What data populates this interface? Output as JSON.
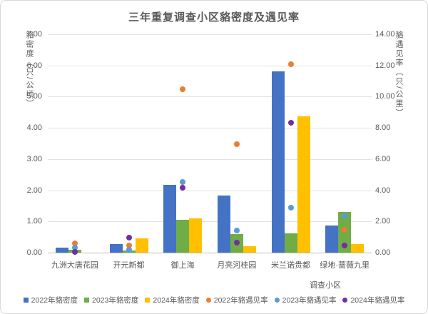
{
  "chart_data": {
    "type": "bar",
    "subtype": "grouped-bars-with-scatter-overlay-dual-y-axis",
    "title": "三年重复调查小区貉密度及遇见率",
    "xlabel": "调查小区",
    "categories": [
      "九洲大唐花园",
      "开元新都",
      "御上海",
      "月亮河桂园",
      "米兰诺贵都",
      "绿地·蔷薇九里"
    ],
    "bar_series": [
      {
        "name": "2022年貉密度",
        "color": "#4472C4",
        "axis": "left",
        "values": [
          0.17,
          0.27,
          2.18,
          1.84,
          5.8,
          0.88
        ]
      },
      {
        "name": "2023年貉密度",
        "color": "#70AD47",
        "axis": "left",
        "values": [
          0.09,
          0.08,
          1.05,
          0.59,
          0.61,
          1.31
        ]
      },
      {
        "name": "2024年貉密度",
        "color": "#FFC000",
        "axis": "left",
        "values": [
          0,
          0.45,
          1.09,
          0.21,
          4.38,
          0.28
        ]
      }
    ],
    "scatter_series": [
      {
        "name": "2022年貉遇见率",
        "color": "#ED7D31",
        "axis": "right",
        "values": [
          0.6,
          0.45,
          10.5,
          6.95,
          12.1,
          1.45
        ]
      },
      {
        "name": "2023年貉遇见率",
        "color": "#5B9BD5",
        "axis": "right",
        "values": [
          0.33,
          0.2,
          4.55,
          1.42,
          2.9,
          2.32
        ]
      },
      {
        "name": "2024年貉遇见率",
        "color": "#7030A0",
        "axis": "right",
        "values": [
          0.05,
          0.97,
          4.15,
          0.65,
          8.35,
          0.48
        ]
      }
    ],
    "left_axis": {
      "label": "貉密度（只/公顷）",
      "min": 0,
      "max": 7,
      "ticks": [
        "7.00",
        "6.00",
        "5.00",
        "4.00",
        "3.00",
        "2.00",
        "1.00",
        "0.00"
      ]
    },
    "right_axis": {
      "label": "貉遇见率（只/公里）",
      "min": 0,
      "max": 14,
      "ticks": [
        "14.00",
        "12.00",
        "10.00",
        "8.00",
        "6.00",
        "4.00",
        "2.00",
        "0.00"
      ]
    },
    "grid": true,
    "legend_position": "bottom"
  }
}
